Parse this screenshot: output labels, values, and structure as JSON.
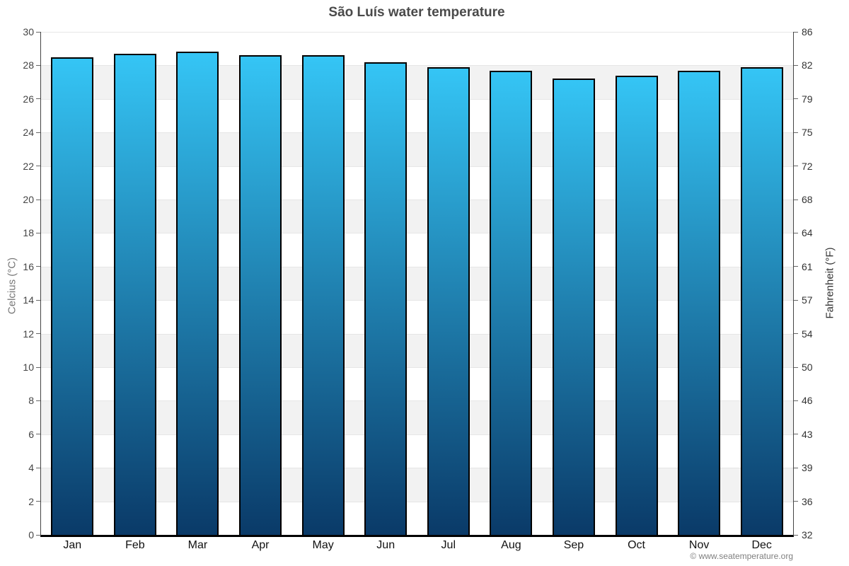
{
  "header": {
    "title": "São Luís water temperature"
  },
  "footer": {
    "attribution": "© www.seatemperature.org"
  },
  "chart_data": {
    "type": "bar",
    "title": "São Luís water temperature",
    "categories": [
      "Jan",
      "Feb",
      "Mar",
      "Apr",
      "May",
      "Jun",
      "Jul",
      "Aug",
      "Sep",
      "Oct",
      "Nov",
      "Dec"
    ],
    "values": [
      28.5,
      28.7,
      28.8,
      28.6,
      28.6,
      28.2,
      27.9,
      27.7,
      27.2,
      27.4,
      27.7,
      27.9
    ],
    "ylabel_left": "Celcius (°C)",
    "ylabel_right": "Fahrenheit (°F)",
    "ylim": [
      0,
      30
    ],
    "yticks_left": [
      30,
      28,
      26,
      24,
      22,
      20,
      18,
      16,
      14,
      12,
      10,
      8,
      6,
      4,
      2,
      0
    ],
    "yticks_right": [
      86,
      82,
      79,
      75,
      72,
      68,
      64,
      61,
      57,
      54,
      50,
      46,
      43,
      39,
      36,
      32
    ],
    "legend": "none",
    "grid": "alternating-horizontal-bands-every-2C",
    "colors": {
      "bar_gradient_top": "#35c5f5",
      "bar_gradient_bottom": "#0a3a68",
      "bar_border": "#000000",
      "band_gray": "#f2f2f2",
      "band_white": "#ffffff",
      "title_text": "#4a4a4a"
    }
  }
}
